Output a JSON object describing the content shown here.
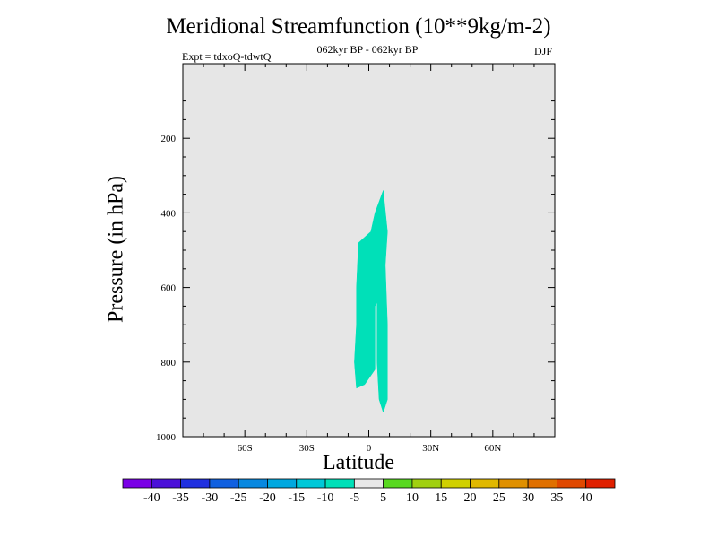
{
  "chart_data": {
    "type": "contour",
    "title": "Meridional Streamfunction (10**9kg/m-2)",
    "subtitle": "062kyr BP - 062kyr BP",
    "experiment": "Expt = tdxoQ-tdwtQ",
    "season": "DJF",
    "xlabel": "Latitude",
    "ylabel": "Pressure (in hPa)",
    "xlim": [
      -90,
      90
    ],
    "ylim": [
      1000,
      0
    ],
    "x_ticks": [
      -60,
      -30,
      0,
      30,
      60
    ],
    "x_tick_labels": [
      "60S",
      "30S",
      "0",
      "30N",
      "60N"
    ],
    "y_ticks": [
      200,
      400,
      600,
      800,
      1000
    ],
    "y_tick_labels": [
      "200",
      "400",
      "600",
      "800",
      "1000"
    ],
    "background_color": "#e6e6e6",
    "filled_regions": [
      {
        "level": "-10 to -5",
        "color": "#00e0b8",
        "outline": [
          [
            -6,
            870
          ],
          [
            -7,
            800
          ],
          [
            -6,
            700
          ],
          [
            -6,
            600
          ],
          [
            -5,
            480
          ],
          [
            1,
            450
          ],
          [
            3,
            400
          ],
          [
            7,
            340
          ],
          [
            9,
            450
          ],
          [
            8,
            540
          ],
          [
            9,
            700
          ],
          [
            9,
            900
          ],
          [
            7,
            935
          ],
          [
            5,
            900
          ],
          [
            4,
            800
          ],
          [
            4,
            640
          ],
          [
            3,
            650
          ],
          [
            3,
            820
          ],
          [
            -2,
            860
          ]
        ]
      }
    ],
    "colorbar": {
      "colors": [
        "#7a00e6",
        "#4b10d8",
        "#2030e0",
        "#1060e0",
        "#0888e0",
        "#00a8e0",
        "#00c8d8",
        "#00e0b8",
        "#e8e8e8",
        "#58d820",
        "#a0d010",
        "#d0d000",
        "#e0b800",
        "#e09000",
        "#e07000",
        "#e04800",
        "#e02000"
      ],
      "labels": [
        "-40",
        "-35",
        "-30",
        "-25",
        "-20",
        "-15",
        "-10",
        "-5",
        "5",
        "10",
        "15",
        "20",
        "25",
        "30",
        "35",
        "40"
      ]
    }
  }
}
